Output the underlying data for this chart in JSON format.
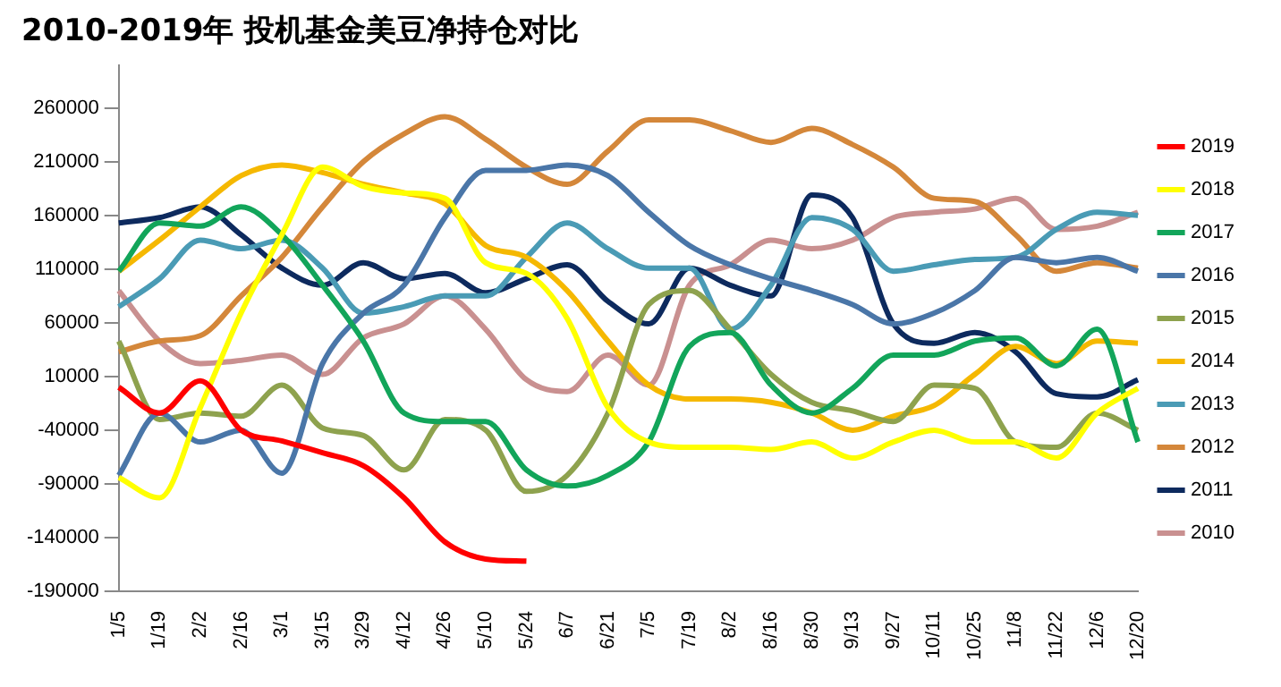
{
  "chart_data": {
    "type": "line",
    "title": "2010-2019年 投机基金美豆净持仓对比",
    "categories": [
      "1/5",
      "1/19",
      "2/2",
      "2/16",
      "3/1",
      "3/15",
      "3/29",
      "4/12",
      "4/26",
      "5/10",
      "5/24",
      "6/7",
      "6/21",
      "7/5",
      "7/19",
      "8/2",
      "8/16",
      "8/30",
      "9/13",
      "9/27",
      "10/11",
      "10/25",
      "11/8",
      "11/22",
      "12/6",
      "12/20"
    ],
    "series": [
      {
        "name": "2019",
        "color": "#ff0000",
        "values": [
          0,
          -24000,
          6000,
          -40000,
          -50000,
          -61000,
          -73000,
          -103000,
          -144000,
          -160000,
          -162000,
          null,
          null,
          null,
          null,
          null,
          null,
          null,
          null,
          null,
          null,
          null,
          null,
          null,
          null,
          null
        ]
      },
      {
        "name": "2018",
        "color": "#ffff00",
        "values": [
          -84000,
          -103000,
          -19000,
          69000,
          142000,
          205000,
          187000,
          181000,
          176000,
          116000,
          106000,
          64000,
          -19000,
          -51000,
          -56000,
          -56000,
          -58000,
          -51000,
          -66000,
          -51000,
          -40000,
          -51000,
          -51000,
          -66000,
          -24000,
          -1000
        ]
      },
      {
        "name": "2017",
        "color": "#12a55a",
        "values": [
          108000,
          153000,
          150000,
          168000,
          142000,
          95000,
          43000,
          -24000,
          -32000,
          -32000,
          -77000,
          -92000,
          -82000,
          -51000,
          38000,
          51000,
          2000,
          -24000,
          -1000,
          30000,
          30000,
          43000,
          46000,
          20000,
          54000,
          -51000
        ]
      },
      {
        "name": "2016",
        "color": "#4a76a8",
        "values": [
          -82000,
          -24000,
          -51000,
          -40000,
          -80000,
          22000,
          69000,
          95000,
          158000,
          202000,
          202000,
          207000,
          197000,
          163000,
          132000,
          114000,
          101000,
          90000,
          77000,
          59000,
          69000,
          90000,
          121000,
          116000,
          121000,
          108000
        ]
      },
      {
        "name": "2015",
        "color": "#8ea24e",
        "values": [
          43000,
          -30000,
          -24000,
          -27000,
          2000,
          -38000,
          -45000,
          -77000,
          -30000,
          -40000,
          -97000,
          -82000,
          -24000,
          77000,
          90000,
          54000,
          12000,
          -14000,
          -22000,
          -32000,
          2000,
          -1000,
          -51000,
          -56000,
          -24000,
          -40000
        ]
      },
      {
        "name": "2014",
        "color": "#f5b800",
        "values": [
          108000,
          137000,
          168000,
          197000,
          207000,
          200000,
          189000,
          181000,
          171000,
          132000,
          121000,
          90000,
          43000,
          2000,
          -11000,
          -11000,
          -14000,
          -24000,
          -40000,
          -27000,
          -17000,
          12000,
          38000,
          22000,
          43000,
          41000
        ]
      },
      {
        "name": "2013",
        "color": "#4a9bb5",
        "values": [
          75000,
          101000,
          137000,
          129000,
          137000,
          111000,
          69000,
          75000,
          85000,
          85000,
          121000,
          153000,
          129000,
          111000,
          111000,
          54000,
          95000,
          158000,
          147000,
          108000,
          114000,
          119000,
          121000,
          147000,
          163000,
          160000
        ]
      },
      {
        "name": "2012",
        "color": "#d4873a",
        "values": [
          33000,
          43000,
          48000,
          85000,
          121000,
          168000,
          210000,
          236000,
          252000,
          231000,
          205000,
          189000,
          220000,
          249000,
          249000,
          239000,
          228000,
          241000,
          226000,
          205000,
          176000,
          173000,
          142000,
          108000,
          116000,
          111000
        ]
      },
      {
        "name": "2011",
        "color": "#0d2a5e",
        "values": [
          153000,
          158000,
          168000,
          142000,
          111000,
          95000,
          116000,
          101000,
          106000,
          88000,
          101000,
          114000,
          80000,
          59000,
          111000,
          95000,
          85000,
          179000,
          158000,
          59000,
          41000,
          51000,
          33000,
          -6000,
          -9000,
          7000
        ]
      },
      {
        "name": "2010",
        "color": "#c99090",
        "values": [
          90000,
          43000,
          22000,
          25000,
          30000,
          12000,
          46000,
          59000,
          85000,
          54000,
          7000,
          -4000,
          30000,
          2000,
          95000,
          114000,
          137000,
          129000,
          137000,
          158000,
          163000,
          166000,
          176000,
          147000,
          150000,
          163000
        ]
      }
    ],
    "ylim": [
      -190000,
      300000
    ],
    "yticks": [
      -190000,
      -140000,
      -90000,
      -40000,
      10000,
      60000,
      110000,
      160000,
      210000,
      260000
    ],
    "legend": "right",
    "grid": false,
    "marker": "none",
    "line_style": "solid"
  }
}
